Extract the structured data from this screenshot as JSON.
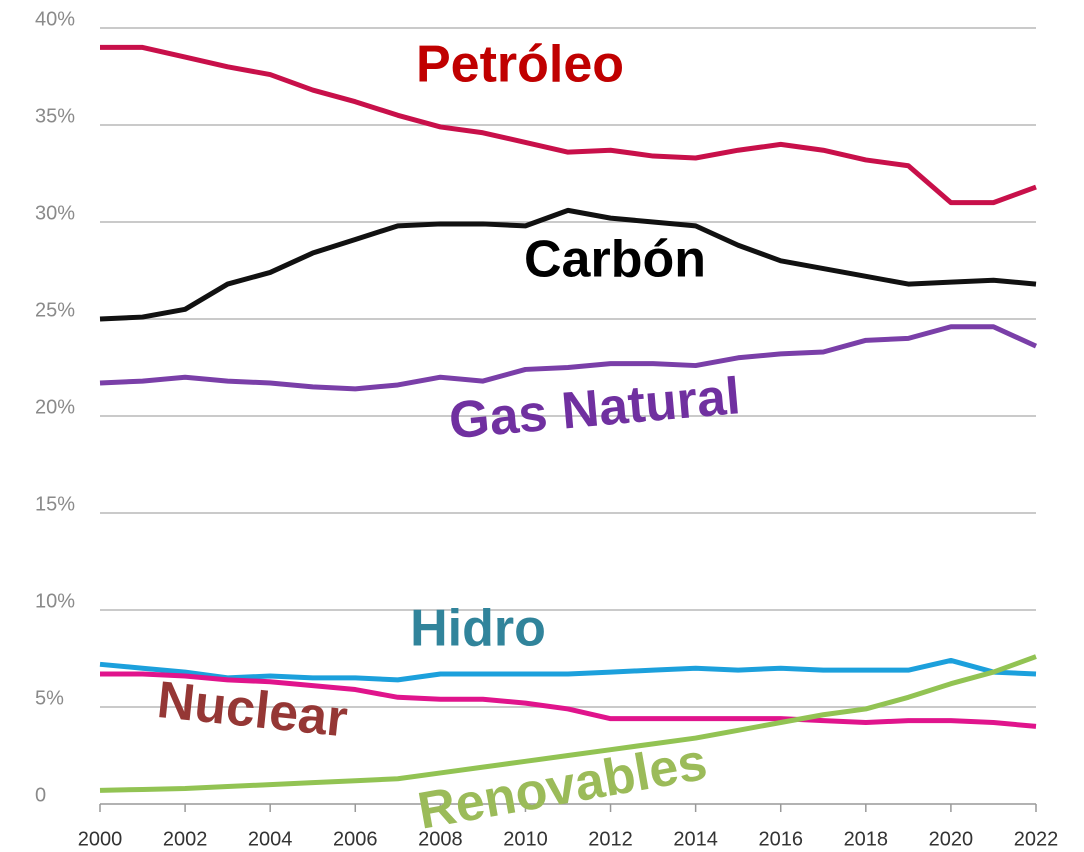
{
  "chart_data": {
    "type": "line",
    "x": [
      2000,
      2001,
      2002,
      2003,
      2004,
      2005,
      2006,
      2007,
      2008,
      2009,
      2010,
      2011,
      2012,
      2013,
      2014,
      2015,
      2016,
      2017,
      2018,
      2019,
      2020,
      2021,
      2022
    ],
    "xlim": [
      2000,
      2022
    ],
    "xticks": [
      2000,
      2002,
      2004,
      2006,
      2008,
      2010,
      2012,
      2014,
      2016,
      2018,
      2020,
      2022
    ],
    "ylim": [
      0,
      40
    ],
    "yticks": [
      0,
      {
        "value": 5,
        "label": "5%"
      },
      {
        "value": 10,
        "label": "10%"
      },
      {
        "value": 15,
        "label": "15%"
      },
      {
        "value": 20,
        "label": "20%"
      },
      {
        "value": 25,
        "label": "25%"
      },
      {
        "value": 30,
        "label": "30%"
      },
      {
        "value": 35,
        "label": "35%"
      },
      {
        "value": 40,
        "label": "40%"
      }
    ],
    "grid": true,
    "series": [
      {
        "name": "Petróleo",
        "color": "#c8104a",
        "label_color": "#c00000",
        "values": [
          39.0,
          39.0,
          38.5,
          38.0,
          37.6,
          36.8,
          36.2,
          35.5,
          34.9,
          34.6,
          34.1,
          33.6,
          33.7,
          33.4,
          33.3,
          33.7,
          34.0,
          33.7,
          33.2,
          32.9,
          31.0,
          31.0,
          31.8
        ]
      },
      {
        "name": "Carbón",
        "color": "#111111",
        "label_color": "#000000",
        "values": [
          25.0,
          25.1,
          25.5,
          26.8,
          27.4,
          28.4,
          29.1,
          29.8,
          29.9,
          29.9,
          29.8,
          30.6,
          30.2,
          30.0,
          29.8,
          28.8,
          28.0,
          27.6,
          27.2,
          26.8,
          26.9,
          27.0,
          26.8
        ]
      },
      {
        "name": "Gas Natural",
        "color": "#7a3fa8",
        "label_color": "#7030a0",
        "values": [
          21.7,
          21.8,
          22.0,
          21.8,
          21.7,
          21.5,
          21.4,
          21.6,
          22.0,
          21.8,
          22.4,
          22.5,
          22.7,
          22.7,
          22.6,
          23.0,
          23.2,
          23.3,
          23.9,
          24.0,
          24.6,
          24.6,
          23.6
        ]
      },
      {
        "name": "Hidro",
        "color": "#1ca0dc",
        "label_color": "#31849b",
        "values": [
          7.2,
          7.0,
          6.8,
          6.5,
          6.6,
          6.5,
          6.5,
          6.4,
          6.7,
          6.7,
          6.7,
          6.7,
          6.8,
          6.9,
          7.0,
          6.9,
          7.0,
          6.9,
          6.9,
          6.9,
          7.4,
          6.8,
          6.7
        ]
      },
      {
        "name": "Nuclear",
        "color": "#e0148c",
        "label_color": "#953735",
        "values": [
          6.7,
          6.7,
          6.6,
          6.4,
          6.3,
          6.1,
          5.9,
          5.5,
          5.4,
          5.4,
          5.2,
          4.9,
          4.4,
          4.4,
          4.4,
          4.4,
          4.4,
          4.3,
          4.2,
          4.3,
          4.3,
          4.2,
          4.0
        ]
      },
      {
        "name": "Renovables",
        "color": "#92c353",
        "label_color": "#9bbb59",
        "values": [
          0.7,
          0.75,
          0.8,
          0.9,
          1.0,
          1.1,
          1.2,
          1.3,
          1.6,
          1.9,
          2.2,
          2.5,
          2.8,
          3.1,
          3.4,
          3.8,
          4.2,
          4.6,
          4.9,
          5.5,
          6.2,
          6.8,
          7.6
        ]
      }
    ]
  }
}
